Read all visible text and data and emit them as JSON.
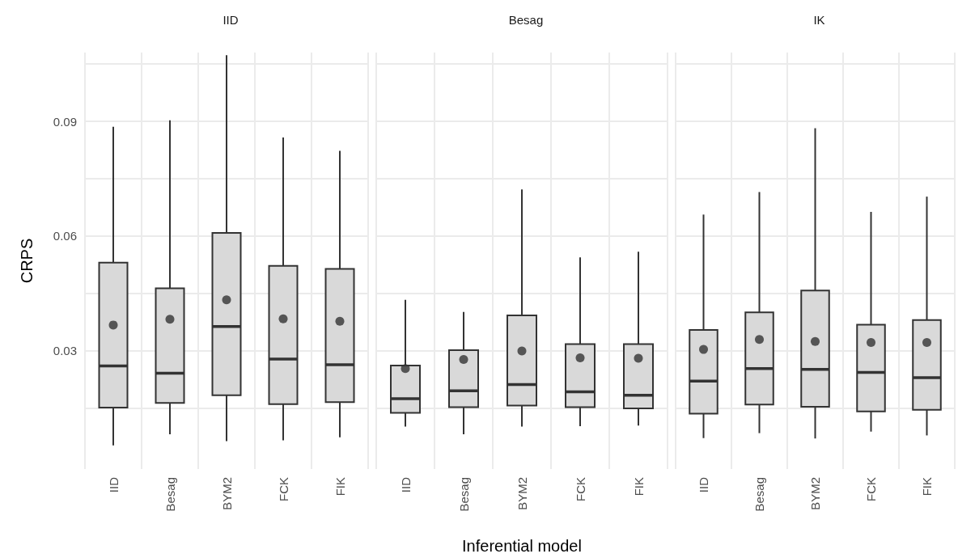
{
  "chart_data": [
    {
      "type": "box",
      "title": "IID",
      "ylabel": "CRPS",
      "categories": [
        "IID",
        "Besag",
        "BYM2",
        "FCK",
        "FIK"
      ],
      "color": "#d9d9d9",
      "marker": "circle",
      "grid": true,
      "ylim": [
        -0.001,
        0.108
      ],
      "yticks": [
        {
          "value": 0.015,
          "label": null
        },
        0.03,
        {
          "value": 0.045,
          "label": null
        },
        0.06,
        {
          "value": 0.075,
          "label": null
        },
        0.09,
        {
          "value": 0.105,
          "label": null
        }
      ],
      "boxes": [
        {
          "low": 0.0052,
          "q1": 0.0151,
          "median": 0.026,
          "q3": 0.053,
          "high": 0.0886,
          "mean": 0.0367
        },
        {
          "low": 0.0081,
          "q1": 0.0163,
          "median": 0.0241,
          "q3": 0.0463,
          "high": 0.0903,
          "mean": 0.0382
        },
        {
          "low": 0.0063,
          "q1": 0.0183,
          "median": 0.0363,
          "q3": 0.0608,
          "high": 0.1073,
          "mean": 0.0433
        },
        {
          "low": 0.0065,
          "q1": 0.016,
          "median": 0.0278,
          "q3": 0.0522,
          "high": 0.0858,
          "mean": 0.0383
        },
        {
          "low": 0.0073,
          "q1": 0.0165,
          "median": 0.0263,
          "q3": 0.0514,
          "high": 0.0823,
          "mean": 0.0377
        }
      ]
    },
    {
      "type": "box",
      "title": "Besag",
      "xlabel": "Inferential model",
      "categories": [
        "IID",
        "Besag",
        "BYM2",
        "FCK",
        "FIK"
      ],
      "color": "#d9d9d9",
      "marker": "circle",
      "grid": true,
      "tick_labels": "x",
      "ylim": [
        -0.001,
        0.108
      ],
      "yticks": [
        {
          "value": 0.015,
          "label": null
        },
        0.03,
        {
          "value": 0.045,
          "label": null
        },
        0.06,
        {
          "value": 0.075,
          "label": null
        },
        0.09,
        {
          "value": 0.105,
          "label": null
        }
      ],
      "boxes": [
        {
          "low": 0.0101,
          "q1": 0.0137,
          "median": 0.0174,
          "q3": 0.0261,
          "high": 0.0433,
          "mean": 0.0253
        },
        {
          "low": 0.0081,
          "q1": 0.0152,
          "median": 0.0195,
          "q3": 0.0301,
          "high": 0.0401,
          "mean": 0.0277
        },
        {
          "low": 0.0101,
          "q1": 0.0156,
          "median": 0.0211,
          "q3": 0.0392,
          "high": 0.0722,
          "mean": 0.0299
        },
        {
          "low": 0.0102,
          "q1": 0.0152,
          "median": 0.0192,
          "q3": 0.0317,
          "high": 0.0544,
          "mean": 0.0281
        },
        {
          "low": 0.0104,
          "q1": 0.0149,
          "median": 0.0183,
          "q3": 0.0317,
          "high": 0.0559,
          "mean": 0.028
        }
      ]
    },
    {
      "type": "box",
      "title": "IK",
      "categories": [
        "IID",
        "Besag",
        "BYM2",
        "FCK",
        "FIK"
      ],
      "color": "#d9d9d9",
      "marker": "circle",
      "grid": true,
      "tick_labels": "x",
      "ylim": [
        -0.001,
        0.108
      ],
      "yticks": [
        {
          "value": 0.015,
          "label": null
        },
        0.03,
        {
          "value": 0.045,
          "label": null
        },
        0.06,
        {
          "value": 0.075,
          "label": null
        },
        0.09,
        {
          "value": 0.105,
          "label": null
        }
      ],
      "boxes": [
        {
          "low": 0.0071,
          "q1": 0.0135,
          "median": 0.022,
          "q3": 0.0354,
          "high": 0.0656,
          "mean": 0.0303
        },
        {
          "low": 0.0084,
          "q1": 0.0159,
          "median": 0.0253,
          "q3": 0.04,
          "high": 0.0715,
          "mean": 0.0329
        },
        {
          "low": 0.007,
          "q1": 0.0153,
          "median": 0.0251,
          "q3": 0.0457,
          "high": 0.0882,
          "mean": 0.0324
        },
        {
          "low": 0.0088,
          "q1": 0.0141,
          "median": 0.0243,
          "q3": 0.0368,
          "high": 0.0663,
          "mean": 0.0321
        },
        {
          "low": 0.0078,
          "q1": 0.0145,
          "median": 0.0229,
          "q3": 0.038,
          "high": 0.0703,
          "mean": 0.0321
        }
      ]
    }
  ]
}
